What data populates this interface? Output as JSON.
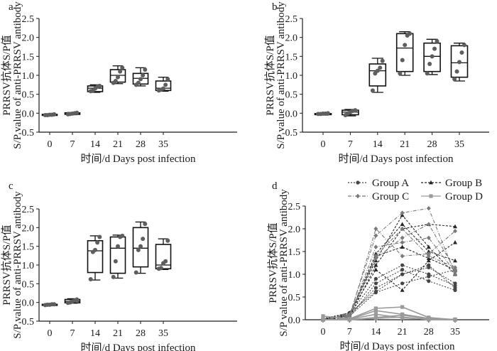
{
  "chart_data": [
    {
      "id": "a",
      "type": "box",
      "panel_label": "a",
      "xlabel": "时间/d Days post infection",
      "ylabel_cn": "PRRSV抗体S/P值",
      "ylabel_en": "S/P value of anti-PRRSV antibody",
      "categories": [
        "0",
        "7",
        "14",
        "21",
        "28",
        "35"
      ],
      "ylim": [
        -0.5,
        2.5
      ],
      "yticks": [
        "-0.5",
        "0.0",
        "0.5",
        "1.0",
        "1.5",
        "2.0",
        "2.5"
      ],
      "boxes": [
        {
          "min": -0.07,
          "q1": -0.05,
          "median": -0.04,
          "q3": -0.03,
          "max": -0.02
        },
        {
          "min": -0.04,
          "q1": -0.03,
          "median": -0.01,
          "q3": 0.01,
          "max": 0.02
        },
        {
          "min": 0.55,
          "q1": 0.57,
          "median": 0.66,
          "q3": 0.72,
          "max": 0.75
        },
        {
          "min": 0.78,
          "q1": 0.82,
          "median": 1.0,
          "q3": 1.15,
          "max": 1.25
        },
        {
          "min": 0.72,
          "q1": 0.77,
          "median": 0.92,
          "q3": 1.05,
          "max": 1.2
        },
        {
          "min": 0.58,
          "q1": 0.6,
          "median": 0.66,
          "q3": 0.85,
          "max": 0.95
        }
      ],
      "points": [
        [
          -0.05,
          -0.05,
          -0.04,
          -0.04,
          -0.03
        ],
        [
          -0.03,
          -0.02,
          -0.01,
          0.0,
          0.01
        ],
        [
          0.58,
          0.6,
          0.65,
          0.7,
          0.72
        ],
        [
          0.8,
          0.85,
          0.95,
          1.1,
          1.2
        ],
        [
          0.75,
          0.8,
          0.9,
          1.0,
          1.15
        ],
        [
          0.6,
          0.62,
          0.65,
          0.75,
          0.9
        ]
      ]
    },
    {
      "id": "b",
      "type": "box",
      "panel_label": "b",
      "xlabel": "时间/d Days post infection",
      "ylabel_cn": "PRRSV抗体S/P值",
      "ylabel_en": "S/P value of anti-PRRSV antibody",
      "categories": [
        "0",
        "7",
        "14",
        "21",
        "28",
        "35"
      ],
      "ylim": [
        -0.5,
        2.5
      ],
      "yticks": [
        "-0.5",
        "0.0",
        "0.5",
        "1.0",
        "1.5",
        "2.0",
        "2.5"
      ],
      "boxes": [
        {
          "min": -0.05,
          "q1": -0.03,
          "median": -0.02,
          "q3": -0.01,
          "max": 0.0
        },
        {
          "min": -0.07,
          "q1": -0.04,
          "median": 0.03,
          "q3": 0.08,
          "max": 0.1
        },
        {
          "min": 0.55,
          "q1": 0.72,
          "median": 1.12,
          "q3": 1.3,
          "max": 1.45
        },
        {
          "min": 1.0,
          "q1": 1.1,
          "median": 1.72,
          "q3": 2.1,
          "max": 2.15
        },
        {
          "min": 1.02,
          "q1": 1.1,
          "median": 1.5,
          "q3": 1.85,
          "max": 1.95
        },
        {
          "min": 0.85,
          "q1": 0.95,
          "median": 1.33,
          "q3": 1.78,
          "max": 1.85
        }
      ],
      "points": [
        [
          -0.02,
          -0.02,
          -0.01,
          -0.01,
          0.0
        ],
        [
          -0.05,
          0.0,
          0.03,
          0.06,
          0.08
        ],
        [
          0.6,
          1.05,
          1.12,
          1.2,
          1.38
        ],
        [
          1.05,
          1.4,
          1.8,
          2.05,
          2.1
        ],
        [
          1.05,
          1.3,
          1.5,
          1.7,
          1.9
        ],
        [
          0.9,
          1.1,
          1.35,
          1.6,
          1.8
        ]
      ]
    },
    {
      "id": "c",
      "type": "box",
      "panel_label": "c",
      "xlabel": "时间/d Days post infection",
      "ylabel_cn": "PRRSV抗体S/P值",
      "ylabel_en": "S/P value of anti-PRRSV antibody",
      "categories": [
        "0",
        "7",
        "14",
        "21",
        "28",
        "35"
      ],
      "ylim": [
        -0.5,
        2.5
      ],
      "yticks": [
        "-0.5",
        "0.0",
        "0.5",
        "1.0",
        "1.5",
        "2.0",
        "2.5"
      ],
      "boxes": [
        {
          "min": -0.08,
          "q1": -0.07,
          "median": -0.06,
          "q3": -0.05,
          "max": -0.04
        },
        {
          "min": -0.02,
          "q1": -0.01,
          "median": 0.03,
          "q3": 0.08,
          "max": 0.1
        },
        {
          "min": 0.6,
          "q1": 0.8,
          "median": 1.38,
          "q3": 1.65,
          "max": 1.78
        },
        {
          "min": 0.65,
          "q1": 0.78,
          "median": 1.45,
          "q3": 1.75,
          "max": 1.8
        },
        {
          "min": 0.78,
          "q1": 0.95,
          "median": 1.45,
          "q3": 2.0,
          "max": 2.15
        },
        {
          "min": 0.88,
          "q1": 0.9,
          "median": 1.0,
          "q3": 1.55,
          "max": 1.7
        }
      ],
      "points": [
        [
          -0.07,
          -0.06,
          -0.06,
          -0.05,
          -0.05
        ],
        [
          -0.01,
          0.0,
          0.03,
          0.05,
          0.08
        ],
        [
          0.62,
          1.35,
          1.4,
          1.6,
          1.75
        ],
        [
          0.68,
          1.1,
          1.5,
          1.75,
          1.78
        ],
        [
          0.8,
          1.4,
          1.5,
          1.7,
          2.1
        ],
        [
          0.9,
          0.92,
          1.05,
          1.1,
          1.65
        ]
      ]
    },
    {
      "id": "d",
      "type": "line",
      "panel_label": "d",
      "xlabel": "时间/d Days post infection",
      "ylabel_cn": "PRRSV抗体S/P值",
      "ylabel_en": "S/P value of anti-PRRSV antibody",
      "x": [
        "0",
        "7",
        "14",
        "21",
        "28",
        "35"
      ],
      "ylim": [
        0.0,
        2.5
      ],
      "yticks": [
        "0.0",
        "0.5",
        "1.0",
        "1.5",
        "2.0",
        "2.5"
      ],
      "legend_position": "top",
      "groups": [
        {
          "name": "Group A",
          "color": "#454545",
          "marker": "circle",
          "dash": "2,2",
          "series": [
            [
              0.02,
              0.08,
              0.6,
              0.8,
              0.95,
              1.1
            ],
            [
              0.01,
              0.1,
              0.7,
              1.0,
              1.2,
              0.7
            ],
            [
              0.0,
              0.05,
              0.8,
              1.1,
              0.85,
              0.65
            ],
            [
              0.02,
              0.12,
              0.9,
              1.2,
              1.0,
              0.75
            ],
            [
              0.03,
              0.15,
              0.62,
              1.0,
              1.15,
              0.8
            ]
          ]
        },
        {
          "name": "Group B",
          "color": "#262626",
          "marker": "triangle",
          "dash": "3,2",
          "series": [
            [
              0.0,
              0.1,
              1.45,
              2.1,
              1.5,
              1.3
            ],
            [
              0.0,
              0.05,
              1.2,
              2.0,
              2.1,
              2.05
            ],
            [
              0.01,
              0.15,
              1.1,
              0.65,
              1.3,
              1.7
            ],
            [
              0.02,
              0.12,
              1.3,
              2.3,
              1.6,
              1.0
            ],
            [
              0.0,
              0.08,
              1.4,
              1.6,
              1.35,
              1.1
            ]
          ]
        },
        {
          "name": "Group C",
          "color": "#7a7a7a",
          "marker": "diamond",
          "dash": "5,2,1,2",
          "series": [
            [
              0.0,
              0.05,
              2.0,
              1.4,
              1.45,
              1.95
            ],
            [
              0.01,
              0.1,
              1.85,
              2.35,
              2.45,
              1.0
            ],
            [
              0.0,
              0.08,
              1.4,
              2.0,
              1.4,
              1.15
            ],
            [
              0.02,
              0.12,
              1.35,
              1.8,
              2.1,
              1.1
            ],
            [
              0.0,
              0.06,
              1.6,
              1.7,
              1.8,
              1.05
            ]
          ]
        },
        {
          "name": "Group D",
          "color": "#9a9a9a",
          "marker": "square",
          "dash": "",
          "series": [
            [
              0.08,
              0.02,
              0.25,
              0.28,
              0.05,
              0.0
            ],
            [
              0.0,
              0.01,
              0.2,
              0.12,
              0.03,
              0.0
            ],
            [
              0.0,
              0.0,
              0.05,
              0.1,
              0.02,
              0.01
            ],
            [
              0.0,
              0.0,
              0.03,
              0.06,
              0.0,
              0.0
            ],
            [
              0.0,
              0.01,
              0.12,
              0.04,
              0.01,
              0.0
            ]
          ]
        }
      ]
    }
  ]
}
